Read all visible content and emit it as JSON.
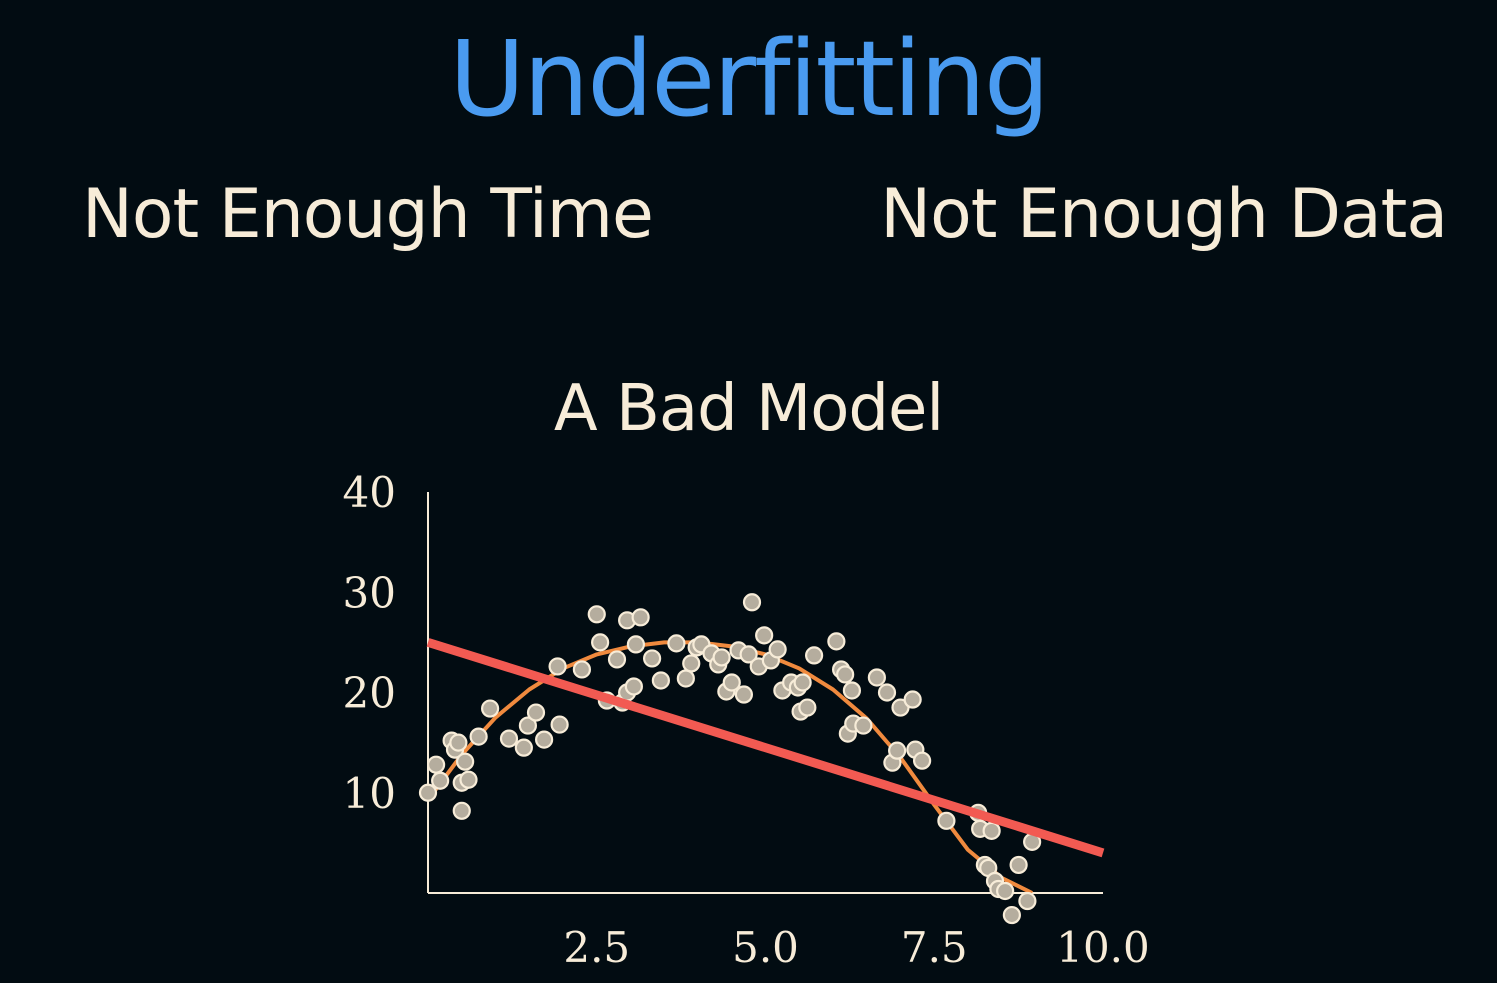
{
  "header": {
    "title": "Underfitting",
    "left_caption": "Not Enough Time",
    "right_caption": "Not Enough Data"
  },
  "chart_data": {
    "type": "scatter",
    "title": "A Bad Model",
    "xlabel": "",
    "ylabel": "",
    "xlim": [
      0,
      10
    ],
    "ylim": [
      0,
      40
    ],
    "x_ticks": [
      2.5,
      5.0,
      7.5,
      10.0
    ],
    "x_tick_labels": [
      "2.5",
      "5.0",
      "7.5",
      "10.0"
    ],
    "y_ticks": [
      10,
      20,
      30,
      40
    ],
    "y_tick_labels": [
      "10",
      "20",
      "30",
      "40"
    ],
    "grid": false,
    "colors": {
      "points": "#b5ad9e",
      "point_edge": "#f7ecd8",
      "linear_fit": "#f25a52",
      "curve_fit": "#f08a3e",
      "axes": "#f7ecd8"
    },
    "points": [
      [
        0.0,
        10.0
      ],
      [
        0.12,
        12.8
      ],
      [
        0.18,
        11.2
      ],
      [
        0.35,
        15.2
      ],
      [
        0.4,
        14.3
      ],
      [
        0.45,
        15.0
      ],
      [
        0.5,
        11.0
      ],
      [
        0.5,
        8.2
      ],
      [
        0.55,
        13.1
      ],
      [
        0.6,
        11.3
      ],
      [
        0.75,
        15.6
      ],
      [
        0.92,
        18.4
      ],
      [
        1.2,
        15.4
      ],
      [
        1.42,
        14.5
      ],
      [
        1.48,
        16.7
      ],
      [
        1.6,
        18.0
      ],
      [
        1.72,
        15.3
      ],
      [
        1.92,
        22.6
      ],
      [
        1.95,
        16.8
      ],
      [
        2.28,
        22.3
      ],
      [
        2.5,
        27.8
      ],
      [
        2.55,
        25.0
      ],
      [
        2.65,
        19.2
      ],
      [
        2.8,
        23.3
      ],
      [
        2.88,
        19.0
      ],
      [
        2.95,
        20.0
      ],
      [
        2.95,
        27.2
      ],
      [
        3.05,
        20.6
      ],
      [
        3.08,
        24.8
      ],
      [
        3.15,
        27.5
      ],
      [
        3.32,
        23.4
      ],
      [
        3.45,
        21.2
      ],
      [
        3.68,
        24.9
      ],
      [
        3.82,
        21.4
      ],
      [
        3.9,
        22.9
      ],
      [
        3.98,
        24.5
      ],
      [
        4.05,
        24.8
      ],
      [
        4.2,
        23.9
      ],
      [
        4.3,
        22.8
      ],
      [
        4.35,
        23.5
      ],
      [
        4.42,
        20.1
      ],
      [
        4.5,
        21.0
      ],
      [
        4.6,
        24.2
      ],
      [
        4.68,
        19.8
      ],
      [
        4.75,
        23.8
      ],
      [
        4.8,
        29.0
      ],
      [
        4.9,
        22.6
      ],
      [
        4.98,
        25.7
      ],
      [
        5.08,
        23.2
      ],
      [
        5.18,
        24.3
      ],
      [
        5.25,
        20.2
      ],
      [
        5.38,
        21.0
      ],
      [
        5.48,
        20.5
      ],
      [
        5.52,
        18.1
      ],
      [
        5.55,
        21.0
      ],
      [
        5.62,
        18.5
      ],
      [
        5.72,
        23.7
      ],
      [
        6.05,
        25.1
      ],
      [
        6.12,
        22.3
      ],
      [
        6.18,
        21.8
      ],
      [
        6.22,
        15.9
      ],
      [
        6.28,
        20.2
      ],
      [
        6.3,
        16.9
      ],
      [
        6.45,
        16.7
      ],
      [
        6.65,
        21.5
      ],
      [
        6.8,
        20.0
      ],
      [
        6.88,
        13.0
      ],
      [
        6.95,
        14.2
      ],
      [
        7.0,
        18.5
      ],
      [
        7.18,
        19.3
      ],
      [
        7.22,
        14.3
      ],
      [
        7.32,
        13.2
      ],
      [
        7.68,
        7.2
      ],
      [
        8.15,
        8.0
      ],
      [
        8.18,
        6.4
      ],
      [
        8.25,
        2.8
      ],
      [
        8.3,
        2.5
      ],
      [
        8.35,
        6.2
      ],
      [
        8.4,
        1.2
      ],
      [
        8.45,
        0.4
      ],
      [
        8.55,
        0.2
      ],
      [
        8.65,
        -2.2
      ],
      [
        8.75,
        2.8
      ],
      [
        8.88,
        -0.8
      ],
      [
        8.95,
        5.1
      ]
    ],
    "linear_fit": {
      "x": [
        0,
        10
      ],
      "y": [
        25.0,
        4.0
      ]
    },
    "curve_fit": {
      "x": [
        0.0,
        0.5,
        1.0,
        1.5,
        2.0,
        2.5,
        3.0,
        3.5,
        4.0,
        4.5,
        5.0,
        5.5,
        6.0,
        6.5,
        7.0,
        7.5,
        8.0,
        8.5,
        8.95
      ],
      "y": [
        9.3,
        13.8,
        17.5,
        20.3,
        22.4,
        23.8,
        24.6,
        25.0,
        25.0,
        24.6,
        23.8,
        22.4,
        20.3,
        17.4,
        13.5,
        8.8,
        4.3,
        1.5,
        0.0
      ]
    }
  }
}
